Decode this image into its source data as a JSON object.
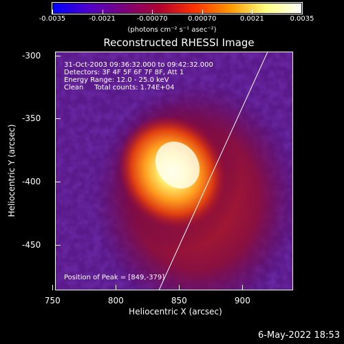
{
  "colorbar": {
    "ticks": [
      "-0.0035",
      "-0.0021",
      "-0.00070",
      "0.00070",
      "0.0021",
      "0.0035"
    ],
    "units_label": "(photons cm⁻² s⁻¹ asec⁻²)",
    "colors": [
      "#0000ff",
      "#5000cc",
      "#7a007a",
      "#b00030",
      "#ff3300",
      "#ff9900",
      "#ffff80",
      "#ffffff"
    ]
  },
  "info": {
    "time_range": "31-Oct-2003 09:36:32.000 to 09:42:32.000",
    "detectors": "Detectors: 3F 4F 5F 6F 7F 8F, Att 1",
    "energy": "Energy Range: 12.0 - 25.0 keV",
    "method_counts": "Clean     Total counts: 1.74E+04",
    "peak": "Position of Peak = [849,-379]"
  },
  "datestamp": "6-May-2022 18:53",
  "chart_data": {
    "type": "heatmap",
    "title": "Reconstructed RHESSI Image",
    "xlabel": "Heliocentric X (arcsec)",
    "ylabel": "Heliocentric Y (arcsec)",
    "xlim": [
      752,
      940
    ],
    "ylim": [
      -486,
      -297
    ],
    "x_ticks": [
      750,
      800,
      850,
      900
    ],
    "y_ticks": [
      -300,
      -350,
      -400,
      -450
    ],
    "colorbar_range": [
      -0.0035,
      0.0035
    ],
    "peak_position": [
      849,
      -379
    ],
    "limb_line": [
      [
        834,
        -486
      ],
      [
        920,
        -297
      ]
    ]
  }
}
